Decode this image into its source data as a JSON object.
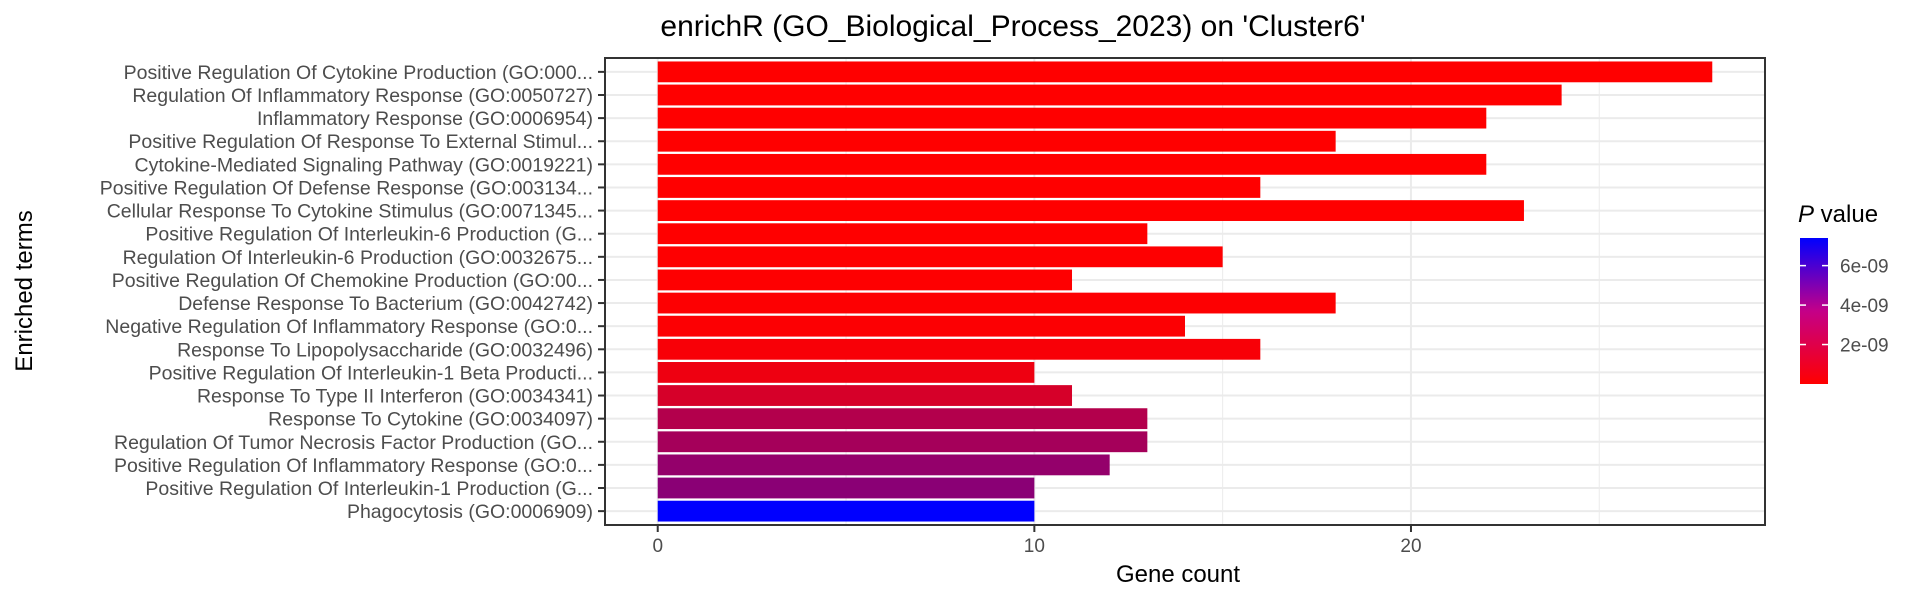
{
  "chart_data": {
    "type": "bar",
    "orientation": "horizontal",
    "title": "enrichR (GO_Biological_Process_2023) on 'Cluster6'",
    "xlabel": "Gene count",
    "ylabel": "Enriched terms",
    "xlim": [
      -1.4,
      29.4
    ],
    "xticks": [
      0,
      10,
      20
    ],
    "xtick_labels": [
      "0",
      "10",
      "20"
    ],
    "grid": true,
    "legend": {
      "title_italic": "P",
      "title_rest": " value",
      "placement": "right",
      "range": [
        0,
        7.4e-09
      ],
      "ticks": [
        2e-09,
        4e-09,
        6e-09
      ],
      "tick_labels": [
        "2e-09",
        "4e-09",
        "6e-09"
      ],
      "color_low": "#FF0000",
      "color_high": "#0000FF"
    },
    "categories": [
      "Positive Regulation Of Cytokine Production (GO:000...",
      "Regulation Of Inflammatory Response (GO:0050727)",
      "Inflammatory Response (GO:0006954)",
      "Positive Regulation Of Response To External Stimul...",
      "Cytokine-Mediated Signaling Pathway (GO:0019221)",
      "Positive Regulation Of Defense Response (GO:003134...",
      "Cellular Response To Cytokine Stimulus (GO:0071345...",
      "Positive Regulation Of Interleukin-6 Production (G...",
      "Regulation Of Interleukin-6 Production (GO:0032675...",
      "Positive Regulation Of Chemokine Production (GO:00...",
      "Defense Response To Bacterium (GO:0042742)",
      "Negative Regulation Of Inflammatory Response (GO:0...",
      "Response To Lipopolysaccharide (GO:0032496)",
      "Positive Regulation Of Interleukin-1 Beta Producti...",
      "Response To Type II Interferon (GO:0034341)",
      "Response To Cytokine (GO:0034097)",
      "Regulation Of Tumor Necrosis Factor Production (GO...",
      "Positive Regulation Of Inflammatory Response (GO:0...",
      "Positive Regulation Of Interleukin-1 Production (G...",
      "Phagocytosis (GO:0006909)"
    ],
    "values": [
      28,
      24,
      22,
      18,
      22,
      16,
      23,
      13,
      15,
      11,
      18,
      14,
      16,
      10,
      11,
      13,
      13,
      12,
      10,
      10
    ],
    "p_values": [
      1e-14,
      1e-13,
      2e-13,
      1e-12,
      2e-12,
      4e-12,
      6e-12,
      1e-11,
      2e-11,
      3e-11,
      5e-11,
      8e-11,
      2e-10,
      5e-10,
      1.2e-09,
      2.2e-09,
      2.6e-09,
      3.1e-09,
      3.4e-09,
      7.4e-09
    ]
  }
}
